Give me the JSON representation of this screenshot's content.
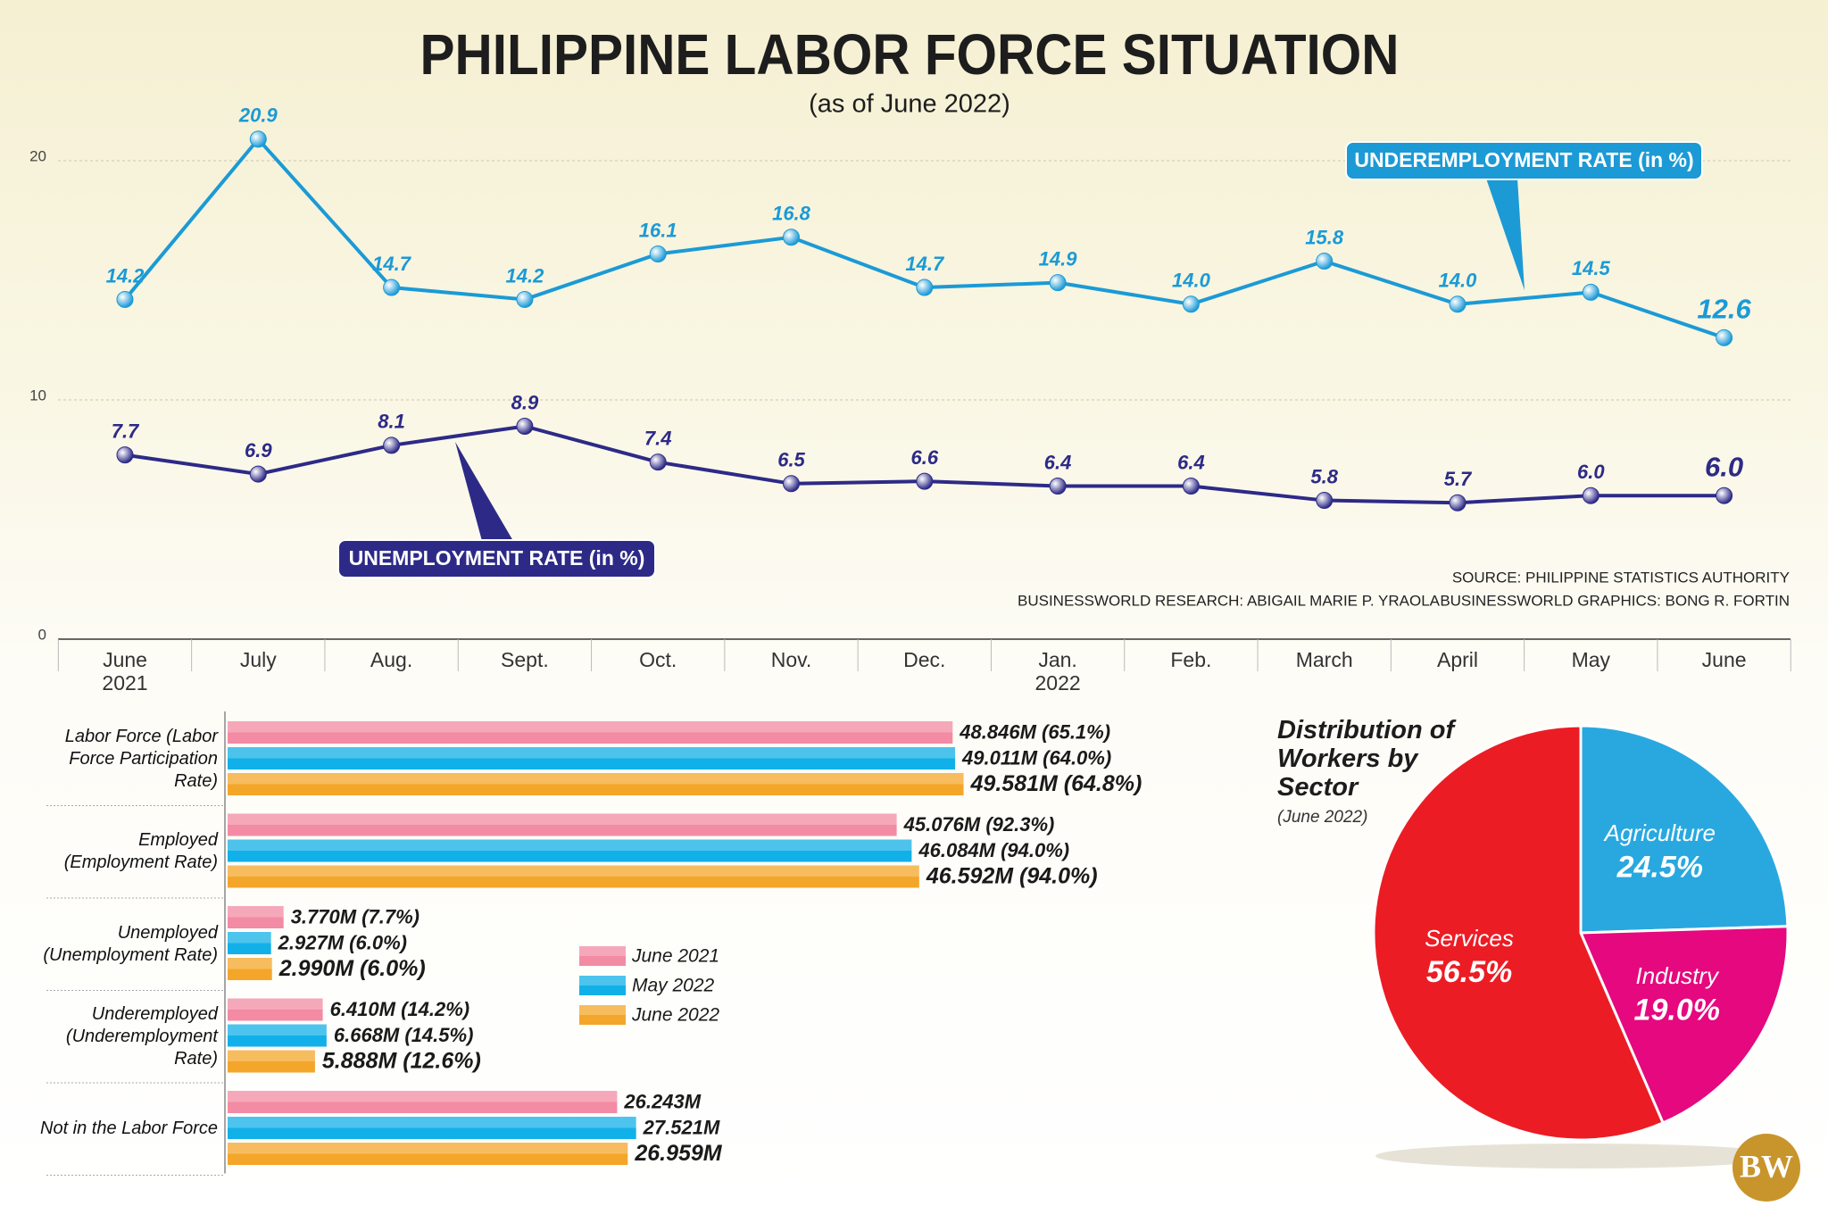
{
  "title": "PHILIPPINE LABOR FORCE SITUATION",
  "subtitle": "(as of June 2022)",
  "chart_data": [
    {
      "type": "line",
      "x": [
        "June 2021",
        "July",
        "Aug.",
        "Sept.",
        "Oct.",
        "Nov.",
        "Dec.",
        "Jan. 2022",
        "Feb.",
        "March",
        "April",
        "May",
        "June"
      ],
      "ylim": [
        0,
        25
      ],
      "yticks": [
        0,
        10,
        20
      ],
      "grid": true,
      "series": [
        {
          "name": "UNDEREMPLOYMENT RATE (in %)",
          "color": "#1b9ad6",
          "values": [
            14.2,
            20.9,
            14.7,
            14.2,
            16.1,
            16.8,
            14.7,
            14.9,
            14.0,
            15.8,
            14.0,
            14.5,
            12.6
          ],
          "value_labels": [
            "14.2",
            "20.9",
            "14.7",
            "14.2",
            "16.1",
            "16.8",
            "14.7",
            "14.9",
            "14.0",
            "15.8",
            "14.0",
            "14.5",
            "12.6"
          ]
        },
        {
          "name": "UNEMPLOYMENT RATE (in %)",
          "color": "#2d2a87",
          "values": [
            7.7,
            6.9,
            8.1,
            8.9,
            7.4,
            6.5,
            6.6,
            6.4,
            6.4,
            5.8,
            5.7,
            6.0,
            6.0
          ],
          "value_labels": [
            "7.7",
            "6.9",
            "8.1",
            "8.9",
            "7.4",
            "6.5",
            "6.6",
            "6.4",
            "6.4",
            "5.8",
            "5.7",
            "6.0",
            "6.0"
          ]
        }
      ]
    },
    {
      "type": "hbar",
      "categories": [
        "Labor Force (Labor Force Participation Rate)",
        "Employed (Employment Rate)",
        "Unemployed (Unemployment Rate)",
        "Underemployed (Underemployment Rate)",
        "Not in the Labor Force"
      ],
      "series": [
        {
          "name": "June 2021",
          "color": "#f28ba3",
          "values": [
            48.846,
            45.076,
            3.77,
            6.41,
            26.243
          ],
          "value_labels": [
            "48.846M (65.1%)",
            "45.076M (92.3%)",
            "3.770M (7.7%)",
            "6.410M (14.2%)",
            "26.243M"
          ]
        },
        {
          "name": "May 2022",
          "color": "#12b0e8",
          "values": [
            49.011,
            46.084,
            2.927,
            6.668,
            27.521
          ],
          "value_labels": [
            "49.011M (64.0%)",
            "46.084M (94.0%)",
            "2.927M (6.0%)",
            "6.668M (14.5%)",
            "27.521M"
          ]
        },
        {
          "name": "June 2022",
          "color": "#f4a62a",
          "values": [
            49.581,
            46.592,
            2.99,
            5.888,
            26.959
          ],
          "value_labels": [
            "49.581M (64.8%)",
            "46.592M (94.0%)",
            "2.990M (6.0%)",
            "5.888M (12.6%)",
            "26.959M"
          ]
        }
      ]
    },
    {
      "type": "pie",
      "title": "Distribution of Workers by Sector",
      "subtitle": "(June 2022)",
      "categories": [
        "Agriculture",
        "Industry",
        "Services"
      ],
      "values": [
        24.5,
        19.0,
        56.5
      ],
      "value_labels": [
        "24.5%",
        "19.0%",
        "56.5%"
      ],
      "colors": [
        "#29a8e0",
        "#e5087f",
        "#ec1c24"
      ]
    }
  ],
  "credits": [
    "SOURCE: PHILIPPINE STATISTICS AUTHORITY",
    "BUSINESSWORLD RESEARCH: ABIGAIL MARIE P. YRAOLA",
    "BUSINESSWORLD GRAPHICS: BONG R. FORTIN"
  ],
  "logo": "BW"
}
